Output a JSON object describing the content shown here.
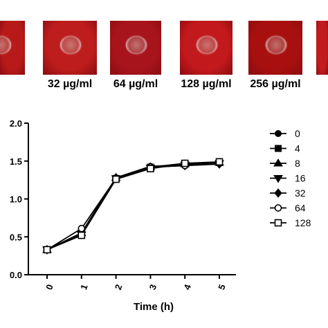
{
  "plates": {
    "labels": [
      "32 µg/ml",
      "64 µg/ml",
      "128 µg/ml",
      "256 µg/ml"
    ],
    "colors": [
      "#b81a1a",
      "#bd1d1d",
      "#a8141c",
      "#c2191c",
      "#a81010",
      "#c21b1d"
    ]
  },
  "chart_data": {
    "type": "line",
    "xlabel": "Time (h)",
    "ylabel": "",
    "x": [
      0,
      1,
      2,
      3,
      4,
      5
    ],
    "x_tick_labels": [
      "0",
      "1",
      "2",
      "3",
      "4",
      "5"
    ],
    "ylim": [
      0.0,
      2.0
    ],
    "y_tick_labels": [
      "0.0",
      "0.5",
      "1.0",
      "1.5",
      "2.0"
    ],
    "grid": false,
    "legend_position": "right",
    "series": [
      {
        "name": "0",
        "marker": "circle-filled",
        "values": [
          0.33,
          0.55,
          1.28,
          1.43,
          1.45,
          1.47
        ]
      },
      {
        "name": "4",
        "marker": "square-filled",
        "values": [
          0.33,
          0.54,
          1.27,
          1.42,
          1.47,
          1.48
        ]
      },
      {
        "name": "8",
        "marker": "triangle-up-filled",
        "values": [
          0.33,
          0.55,
          1.28,
          1.42,
          1.46,
          1.48
        ]
      },
      {
        "name": "16",
        "marker": "triangle-down-filled",
        "values": [
          0.33,
          0.53,
          1.27,
          1.41,
          1.45,
          1.47
        ]
      },
      {
        "name": "32",
        "marker": "diamond-filled",
        "values": [
          0.33,
          0.55,
          1.28,
          1.42,
          1.44,
          1.46
        ]
      },
      {
        "name": "64",
        "marker": "circle-open",
        "values": [
          0.33,
          0.61,
          1.27,
          1.42,
          1.44,
          1.48
        ]
      },
      {
        "name": "128",
        "marker": "square-open",
        "values": [
          0.33,
          0.52,
          1.26,
          1.4,
          1.47,
          1.49
        ]
      }
    ]
  }
}
